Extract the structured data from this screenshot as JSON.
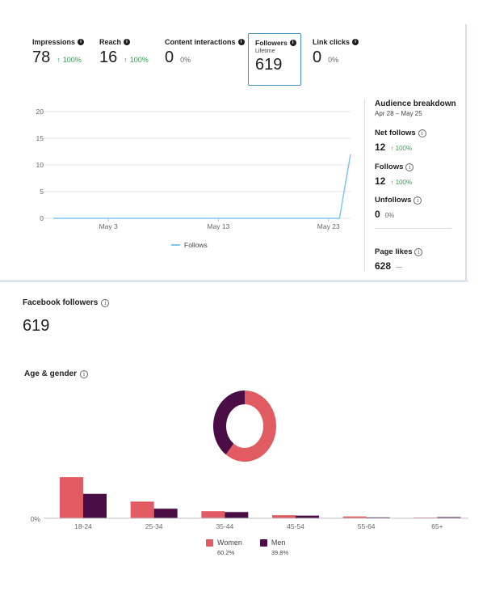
{
  "metrics": [
    {
      "label": "Impressions",
      "value": "78",
      "change": "100%",
      "arrow": "↑",
      "neutral": false
    },
    {
      "label": "Reach",
      "value": "16",
      "change": "100%",
      "arrow": "↑",
      "neutral": false
    },
    {
      "label": "Content interactions",
      "value": "0",
      "change": "0%",
      "arrow": "",
      "neutral": true
    },
    {
      "label": "Followers",
      "sub": "Lifetime",
      "value": "619"
    },
    {
      "label": "Link clicks",
      "value": "0",
      "change": "0%",
      "arrow": "",
      "neutral": true
    }
  ],
  "colors": {
    "follows_line": "#7ec8f0",
    "women": "#e05c62",
    "men": "#4a0d45",
    "positive": "#31a24c",
    "selected_border": "#4a90c2"
  },
  "audience": {
    "title": "Audience breakdown",
    "range": "Apr 28 – May 25",
    "net_follows": {
      "label": "Net follows",
      "value": "12",
      "arrow": "↑",
      "change": "100%"
    },
    "follows": {
      "label": "Follows",
      "value": "12",
      "arrow": "↑",
      "change": "100%"
    },
    "unfollows": {
      "label": "Unfollows",
      "value": "0",
      "change": "0%"
    },
    "page_likes": {
      "label": "Page likes",
      "value": "628",
      "change": "—"
    }
  },
  "facebook_followers": {
    "label": "Facebook followers",
    "count": "619"
  },
  "age_gender": {
    "label": "Age & gender"
  },
  "chart_data": [
    {
      "type": "line",
      "title": "",
      "x_tick_labels": [
        "May 3",
        "May 13",
        "May 23"
      ],
      "x_tick_days": [
        5,
        15,
        25
      ],
      "y_ticks": [
        0,
        5,
        10,
        15,
        20
      ],
      "ylim": [
        0,
        20
      ],
      "xlim": [
        0,
        27
      ],
      "series": [
        {
          "name": "Follows",
          "x": [
            0,
            1,
            2,
            3,
            4,
            5,
            6,
            7,
            8,
            9,
            10,
            11,
            12,
            13,
            14,
            15,
            16,
            17,
            18,
            19,
            20,
            21,
            22,
            23,
            24,
            25,
            26,
            27
          ],
          "values": [
            0,
            0,
            0,
            0,
            0,
            0,
            0,
            0,
            0,
            0,
            0,
            0,
            0,
            0,
            0,
            0,
            0,
            0,
            0,
            0,
            0,
            0,
            0,
            0,
            0,
            0,
            0,
            12
          ]
        }
      ],
      "legend": "bottom"
    },
    {
      "type": "pie",
      "title": "",
      "labels": [
        "Women",
        "Men"
      ],
      "values": [
        60.2,
        39.8
      ]
    },
    {
      "type": "bar",
      "categories": [
        "18-24",
        "25-34",
        "35-44",
        "45-54",
        "55-64",
        "65+"
      ],
      "series": [
        {
          "name": "Women",
          "values": [
            18.5,
            7.5,
            3.2,
            1.4,
            0.8,
            0.3
          ],
          "pct_label": "60.2%"
        },
        {
          "name": "Men",
          "values": [
            11.0,
            4.3,
            2.8,
            1.2,
            0.4,
            0.5
          ],
          "pct_label": "39.8%"
        }
      ],
      "y_tick_labels": [
        "0%"
      ],
      "ylim": [
        0,
        20
      ],
      "legend": "bottom"
    }
  ]
}
